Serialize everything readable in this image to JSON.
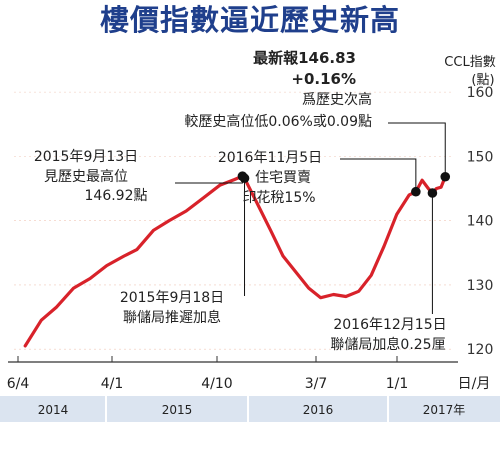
{
  "chart_data": {
    "type": "line",
    "title": "樓價指數逼近歷史新高",
    "ylabel": "CCL指數",
    "yunit": "(點)",
    "ylim": [
      118,
      165
    ],
    "yticks": [
      120,
      130,
      140,
      150,
      160
    ],
    "x_tick_labels": [
      "6/4",
      "4/1",
      "4/10",
      "3/7",
      "1/1"
    ],
    "x_axis_label": "日/月",
    "years": [
      "2014",
      "2015",
      "2016",
      "2017年"
    ],
    "series": [
      {
        "values": [
          {
            "x": "2014-04-06",
            "y": 120.5
          },
          {
            "x": "2014-05-15",
            "y": 124.5
          },
          {
            "x": "2014-06-20",
            "y": 126.5
          },
          {
            "x": "2014-08-01",
            "y": 129.5
          },
          {
            "x": "2014-09-10",
            "y": 131.0
          },
          {
            "x": "2014-10-20",
            "y": 133.0
          },
          {
            "x": "2014-12-01",
            "y": 134.5
          },
          {
            "x": "2015-01-01",
            "y": 135.5
          },
          {
            "x": "2015-02-10",
            "y": 138.5
          },
          {
            "x": "2015-03-20",
            "y": 140.0
          },
          {
            "x": "2015-04-30",
            "y": 141.5
          },
          {
            "x": "2015-06-10",
            "y": 143.5
          },
          {
            "x": "2015-07-20",
            "y": 145.5
          },
          {
            "x": "2015-08-25",
            "y": 146.4
          },
          {
            "x": "2015-09-13",
            "y": 146.92
          },
          {
            "x": "2015-09-18",
            "y": 146.6
          },
          {
            "x": "2015-10-20",
            "y": 142.5
          },
          {
            "x": "2015-11-20",
            "y": 138.5
          },
          {
            "x": "2015-12-20",
            "y": 134.5
          },
          {
            "x": "2016-01-20",
            "y": 132.0
          },
          {
            "x": "2016-02-20",
            "y": 129.5
          },
          {
            "x": "2016-03-20",
            "y": 128.0
          },
          {
            "x": "2016-04-20",
            "y": 128.5
          },
          {
            "x": "2016-05-20",
            "y": 128.2
          },
          {
            "x": "2016-06-20",
            "y": 129.0
          },
          {
            "x": "2016-07-20",
            "y": 131.5
          },
          {
            "x": "2016-08-20",
            "y": 136.0
          },
          {
            "x": "2016-09-20",
            "y": 141.0
          },
          {
            "x": "2016-10-20",
            "y": 144.0
          },
          {
            "x": "2016-11-05",
            "y": 144.5
          },
          {
            "x": "2016-11-20",
            "y": 146.3
          },
          {
            "x": "2016-12-05",
            "y": 145.0
          },
          {
            "x": "2016-12-15",
            "y": 144.3
          },
          {
            "x": "2016-12-25",
            "y": 145.0
          },
          {
            "x": "2017-01-05",
            "y": 145.2
          },
          {
            "x": "2017-01-15",
            "y": 146.83
          }
        ]
      }
    ],
    "markers": [
      {
        "x": "2015-09-13",
        "y": 146.92
      },
      {
        "x": "2015-09-18",
        "y": 146.6
      },
      {
        "x": "2016-11-05",
        "y": 144.5
      },
      {
        "x": "2016-12-15",
        "y": 144.3
      },
      {
        "x": "2017-01-15",
        "y": 146.83
      }
    ],
    "annotations": {
      "latest": {
        "line1": "最新報146.83",
        "line2": "+0.16%",
        "line3": "爲歷史次高",
        "line4": "較歷史高位低0.06%或0.09點"
      },
      "peak": {
        "line1": "2015年9月13日",
        "line2": "見歷史最高位",
        "line3": "146.92點"
      },
      "rate_hike_2015": {
        "line1": "2015年9月18日",
        "line2": "聯儲局推遲加息"
      },
      "stamp_duty": {
        "line1": "2016年11月5日",
        "line2": "住宅買賣",
        "line3": "印花稅15%"
      },
      "rate_hike_2016": {
        "line1": "2016年12月15日",
        "line2": "聯儲局加息0.25厘"
      }
    },
    "colors": {
      "line": "#d8222a",
      "title": "#1f3f8c",
      "year_band": "#dbe4f0",
      "grid": "#f0c8b8",
      "axis": "#333333",
      "marker": "#111111"
    }
  }
}
